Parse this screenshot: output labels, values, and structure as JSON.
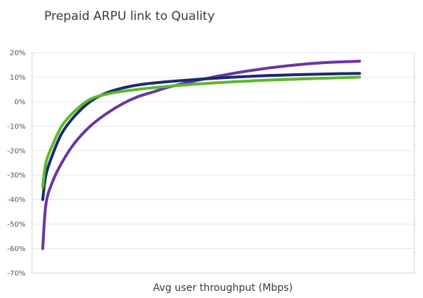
{
  "chart_data": {
    "type": "line",
    "title": "Prepaid ARPU link to Quality",
    "xlabel": "Avg user throughput (Mbps)",
    "ylabel": "",
    "ylim": [
      -70,
      20
    ],
    "yticks": [
      20,
      10,
      0,
      -10,
      -20,
      -30,
      -40,
      -50,
      -60,
      -70
    ],
    "ytick_labels": [
      "20%",
      "10%",
      "0%",
      "-10%",
      "-20%",
      "-30%",
      "-40%",
      "-50%",
      "-60%",
      "-70%"
    ],
    "xlim": [
      0,
      100
    ],
    "x_tick_labels_shown": false,
    "grid": true,
    "legend": "none",
    "series": [
      {
        "color": "#6a35a6",
        "x": [
          0,
          1,
          3,
          6,
          10,
          15,
          20,
          25,
          30,
          35,
          40,
          50,
          60,
          70,
          80,
          90,
          100
        ],
        "values": [
          -60,
          -42,
          -33,
          -25,
          -17,
          -10,
          -5,
          -1,
          2,
          4,
          6,
          9,
          11.5,
          13.5,
          15,
          16,
          16.5
        ]
      },
      {
        "color": "#1a2b6b",
        "x": [
          0,
          1,
          3,
          6,
          10,
          15,
          20,
          25,
          30,
          35,
          40,
          50,
          60,
          70,
          80,
          90,
          100
        ],
        "values": [
          -40,
          -30,
          -22,
          -13,
          -6,
          0,
          3.5,
          5.5,
          6.8,
          7.6,
          8.2,
          9.2,
          10,
          10.6,
          11,
          11.3,
          11.5
        ]
      },
      {
        "color": "#5cb82a",
        "x": [
          0,
          1,
          3,
          6,
          10,
          15,
          20,
          25,
          30,
          35,
          40,
          50,
          60,
          70,
          80,
          90,
          100
        ],
        "values": [
          -35,
          -25,
          -18,
          -10,
          -4,
          1,
          3,
          4.2,
          5,
          5.7,
          6.3,
          7.3,
          8.1,
          8.7,
          9.2,
          9.6,
          10
        ]
      }
    ]
  }
}
